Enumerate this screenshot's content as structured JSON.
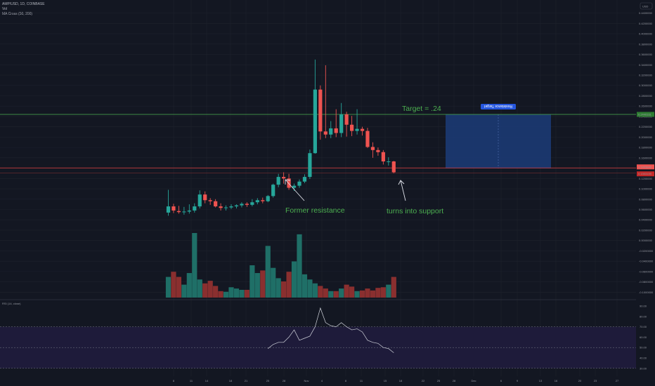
{
  "legend": {
    "symbol_line": "AMP/USD, 1D, COINBASE",
    "vol_line": "Vol",
    "ma_line": "MA Cross (50, 200)"
  },
  "rsi_legend": "RSI (14, close)",
  "currency_button": "USD",
  "annotations": {
    "target": "Target = .24",
    "former_resistance": "Former resistance",
    "turns_into_support": "turns into support"
  },
  "box_label": "Resistance Target",
  "price_badges": {
    "target": "0.2440331",
    "current": "0.1403840",
    "lower": "0.1303159"
  },
  "colors": {
    "up": "#26a69a",
    "down": "#ef5350",
    "background": "#131722",
    "grid": "#1e222d",
    "target_line": "#4caf50",
    "support_line": "#e04040",
    "target_box": "#1c3a73",
    "rsi_band": "#1e1b3a",
    "annotation": "#4caf50"
  },
  "chart_data": [
    {
      "type": "candlestick",
      "x_tick_labels": [
        "8",
        "11",
        "14",
        "18",
        "21",
        "25",
        "28",
        "Nov",
        "4",
        "8",
        "11",
        "15",
        "18",
        "22",
        "25",
        "28",
        "Dec",
        "6",
        "9",
        "13",
        "16",
        "20",
        "23",
        "27"
      ],
      "y_tick_labels": [
        "0.4400000",
        "0.4200000",
        "0.4000000",
        "0.3800000",
        "0.3600000",
        "0.3400000",
        "0.3200000",
        "0.3000000",
        "0.2800000",
        "0.2600000",
        "0.2400000",
        "0.2200000",
        "0.2000000",
        "0.1800000",
        "0.1600000",
        "0.1400000",
        "0.1200000",
        "0.1000000",
        "0.0800000",
        "0.0600000",
        "0.0400000",
        "0.0200000",
        "0.0000000",
        "-0.0200000",
        "-0.0400000",
        "-0.0600000",
        "-0.0800000",
        "-0.1000000"
      ],
      "ylim": [
        -0.1,
        0.44
      ],
      "candles": [
        {
          "o": 0.054,
          "h": 0.098,
          "l": 0.048,
          "c": 0.066
        },
        {
          "o": 0.066,
          "h": 0.071,
          "l": 0.053,
          "c": 0.058
        },
        {
          "o": 0.057,
          "h": 0.067,
          "l": 0.052,
          "c": 0.055
        },
        {
          "o": 0.055,
          "h": 0.065,
          "l": 0.05,
          "c": 0.056
        },
        {
          "o": 0.056,
          "h": 0.07,
          "l": 0.052,
          "c": 0.058
        },
        {
          "o": 0.058,
          "h": 0.072,
          "l": 0.054,
          "c": 0.066
        },
        {
          "o": 0.066,
          "h": 0.097,
          "l": 0.062,
          "c": 0.089
        },
        {
          "o": 0.089,
          "h": 0.095,
          "l": 0.072,
          "c": 0.078
        },
        {
          "o": 0.078,
          "h": 0.082,
          "l": 0.069,
          "c": 0.076
        },
        {
          "o": 0.076,
          "h": 0.08,
          "l": 0.064,
          "c": 0.066
        },
        {
          "o": 0.066,
          "h": 0.072,
          "l": 0.058,
          "c": 0.063
        },
        {
          "o": 0.063,
          "h": 0.068,
          "l": 0.058,
          "c": 0.064
        },
        {
          "o": 0.064,
          "h": 0.07,
          "l": 0.061,
          "c": 0.066
        },
        {
          "o": 0.066,
          "h": 0.07,
          "l": 0.062,
          "c": 0.068
        },
        {
          "o": 0.068,
          "h": 0.074,
          "l": 0.064,
          "c": 0.071
        },
        {
          "o": 0.071,
          "h": 0.074,
          "l": 0.065,
          "c": 0.069
        },
        {
          "o": 0.069,
          "h": 0.08,
          "l": 0.066,
          "c": 0.074
        },
        {
          "o": 0.074,
          "h": 0.082,
          "l": 0.07,
          "c": 0.078
        },
        {
          "o": 0.078,
          "h": 0.083,
          "l": 0.072,
          "c": 0.076
        },
        {
          "o": 0.076,
          "h": 0.088,
          "l": 0.074,
          "c": 0.086
        },
        {
          "o": 0.086,
          "h": 0.11,
          "l": 0.083,
          "c": 0.108
        },
        {
          "o": 0.108,
          "h": 0.129,
          "l": 0.103,
          "c": 0.123
        },
        {
          "o": 0.123,
          "h": 0.132,
          "l": 0.11,
          "c": 0.12
        },
        {
          "o": 0.12,
          "h": 0.129,
          "l": 0.098,
          "c": 0.102
        },
        {
          "o": 0.102,
          "h": 0.11,
          "l": 0.096,
          "c": 0.106
        },
        {
          "o": 0.106,
          "h": 0.118,
          "l": 0.102,
          "c": 0.114
        },
        {
          "o": 0.114,
          "h": 0.128,
          "l": 0.111,
          "c": 0.123
        },
        {
          "o": 0.123,
          "h": 0.176,
          "l": 0.119,
          "c": 0.169
        },
        {
          "o": 0.169,
          "h": 0.35,
          "l": 0.168,
          "c": 0.292
        },
        {
          "o": 0.292,
          "h": 0.3,
          "l": 0.195,
          "c": 0.211
        },
        {
          "o": 0.211,
          "h": 0.339,
          "l": 0.198,
          "c": 0.205
        },
        {
          "o": 0.205,
          "h": 0.231,
          "l": 0.198,
          "c": 0.217
        },
        {
          "o": 0.217,
          "h": 0.254,
          "l": 0.2,
          "c": 0.208
        },
        {
          "o": 0.208,
          "h": 0.266,
          "l": 0.2,
          "c": 0.244
        },
        {
          "o": 0.244,
          "h": 0.249,
          "l": 0.201,
          "c": 0.224
        },
        {
          "o": 0.224,
          "h": 0.241,
          "l": 0.202,
          "c": 0.212
        },
        {
          "o": 0.212,
          "h": 0.254,
          "l": 0.205,
          "c": 0.216
        },
        {
          "o": 0.216,
          "h": 0.22,
          "l": 0.203,
          "c": 0.212
        },
        {
          "o": 0.212,
          "h": 0.218,
          "l": 0.179,
          "c": 0.181
        },
        {
          "o": 0.181,
          "h": 0.19,
          "l": 0.16,
          "c": 0.175
        },
        {
          "o": 0.175,
          "h": 0.18,
          "l": 0.164,
          "c": 0.171
        },
        {
          "o": 0.171,
          "h": 0.175,
          "l": 0.147,
          "c": 0.153
        },
        {
          "o": 0.153,
          "h": 0.161,
          "l": 0.145,
          "c": 0.153
        },
        {
          "o": 0.153,
          "h": 0.154,
          "l": 0.13,
          "c": 0.132
        }
      ],
      "volume": [
        0.32,
        0.4,
        0.32,
        0.2,
        0.38,
        1.0,
        0.28,
        0.22,
        0.26,
        0.18,
        0.1,
        0.09,
        0.16,
        0.14,
        0.12,
        0.12,
        0.5,
        0.38,
        0.42,
        0.8,
        0.46,
        0.3,
        0.25,
        0.4,
        0.56,
        0.98,
        0.36,
        0.28,
        0.22,
        0.18,
        0.14,
        0.1,
        0.1,
        0.14,
        0.2,
        0.17,
        0.1,
        0.11,
        0.14,
        0.11,
        0.15,
        0.16,
        0.2,
        0.32
      ],
      "target_price": 0.244,
      "support_price": 0.1404,
      "support_price_lower": 0.1303
    },
    {
      "type": "line",
      "title": "RSI (14, close)",
      "y_tick_labels": [
        "90.00",
        "80.00",
        "70.00",
        "60.00",
        "50.00",
        "40.00",
        "30.00"
      ],
      "ylim": [
        25,
        95
      ],
      "band": [
        30,
        70
      ],
      "values": [
        {
          "bar": 19,
          "v": 49
        },
        {
          "bar": 20,
          "v": 53
        },
        {
          "bar": 21,
          "v": 55
        },
        {
          "bar": 22,
          "v": 55
        },
        {
          "bar": 23,
          "v": 60
        },
        {
          "bar": 24,
          "v": 67
        },
        {
          "bar": 25,
          "v": 57
        },
        {
          "bar": 26,
          "v": 59
        },
        {
          "bar": 27,
          "v": 61
        },
        {
          "bar": 28,
          "v": 70
        },
        {
          "bar": 29,
          "v": 88
        },
        {
          "bar": 30,
          "v": 74
        },
        {
          "bar": 31,
          "v": 71
        },
        {
          "bar": 32,
          "v": 70
        },
        {
          "bar": 33,
          "v": 74
        },
        {
          "bar": 34,
          "v": 70
        },
        {
          "bar": 35,
          "v": 67
        },
        {
          "bar": 36,
          "v": 68
        },
        {
          "bar": 37,
          "v": 65
        },
        {
          "bar": 38,
          "v": 57
        },
        {
          "bar": 39,
          "v": 55
        },
        {
          "bar": 40,
          "v": 54
        },
        {
          "bar": 41,
          "v": 50
        },
        {
          "bar": 42,
          "v": 49
        },
        {
          "bar": 43,
          "v": 45
        }
      ]
    }
  ]
}
